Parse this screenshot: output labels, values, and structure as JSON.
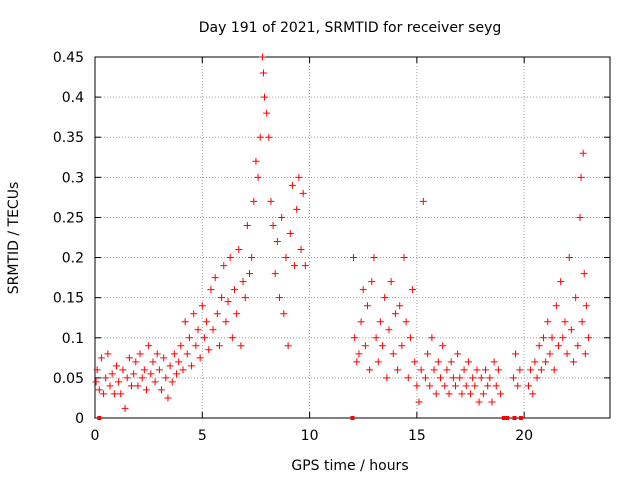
{
  "chart_data": {
    "type": "scatter",
    "title": "Day 191 of 2021, SRMTID for receiver seyg",
    "xlabel": "GPS time / hours",
    "ylabel": "SRMTID / TECUs",
    "xlim": [
      0,
      24
    ],
    "ylim": [
      0,
      0.45
    ],
    "x_ticks": [
      0,
      5,
      10,
      15,
      20
    ],
    "y_ticks": [
      0,
      0.05,
      0.1,
      0.15,
      0.2,
      0.25,
      0.3,
      0.35,
      0.4,
      0.45
    ],
    "x_tick_labels": [
      "0",
      "5",
      "10",
      "15",
      "20"
    ],
    "y_tick_labels": [
      "0",
      "0.05",
      "0.1",
      "0.15",
      "0.2",
      "0.25",
      "0.3",
      "0.35",
      "0.4",
      "0.45"
    ],
    "grid": true,
    "marker": "+",
    "color": "#ff0000",
    "series": [
      {
        "name": "SRMTID",
        "points": [
          [
            0.05,
            0.045
          ],
          [
            0.1,
            0.06
          ],
          [
            0.2,
            0.035
          ],
          [
            0.3,
            0.075
          ],
          [
            0.4,
            0.03
          ],
          [
            0.5,
            0.05
          ],
          [
            0.6,
            0.08
          ],
          [
            0.7,
            0.04
          ],
          [
            0.8,
            0.055
          ],
          [
            0.9,
            0.03
          ],
          [
            1.0,
            0.065
          ],
          [
            1.1,
            0.045
          ],
          [
            1.2,
            0.03
          ],
          [
            1.3,
            0.06
          ],
          [
            1.4,
            0.012
          ],
          [
            1.5,
            0.05
          ],
          [
            1.6,
            0.075
          ],
          [
            1.7,
            0.04
          ],
          [
            1.8,
            0.055
          ],
          [
            1.9,
            0.07
          ],
          [
            2.0,
            0.04
          ],
          [
            2.1,
            0.08
          ],
          [
            2.2,
            0.05
          ],
          [
            2.3,
            0.06
          ],
          [
            2.4,
            0.035
          ],
          [
            2.5,
            0.09
          ],
          [
            2.6,
            0.055
          ],
          [
            2.7,
            0.07
          ],
          [
            2.8,
            0.045
          ],
          [
            2.9,
            0.08
          ],
          [
            3.0,
            0.06
          ],
          [
            3.1,
            0.035
          ],
          [
            3.2,
            0.075
          ],
          [
            3.3,
            0.05
          ],
          [
            3.4,
            0.025
          ],
          [
            3.5,
            0.065
          ],
          [
            3.6,
            0.045
          ],
          [
            3.7,
            0.08
          ],
          [
            3.8,
            0.055
          ],
          [
            3.9,
            0.07
          ],
          [
            4.0,
            0.09
          ],
          [
            4.1,
            0.06
          ],
          [
            4.2,
            0.12
          ],
          [
            4.3,
            0.08
          ],
          [
            4.4,
            0.1
          ],
          [
            4.5,
            0.065
          ],
          [
            4.6,
            0.13
          ],
          [
            4.7,
            0.09
          ],
          [
            4.8,
            0.11
          ],
          [
            4.9,
            0.075
          ],
          [
            5.0,
            0.14
          ],
          [
            5.1,
            0.1
          ],
          [
            5.2,
            0.12
          ],
          [
            5.3,
            0.085
          ],
          [
            5.4,
            0.16
          ],
          [
            5.5,
            0.11
          ],
          [
            5.6,
            0.175
          ],
          [
            5.7,
            0.13
          ],
          [
            5.8,
            0.09
          ],
          [
            5.9,
            0.15
          ],
          [
            6.0,
            0.19
          ],
          [
            6.1,
            0.12
          ],
          [
            6.2,
            0.145
          ],
          [
            6.3,
            0.2
          ],
          [
            6.4,
            0.1
          ],
          [
            6.5,
            0.16
          ],
          [
            6.6,
            0.13
          ],
          [
            6.7,
            0.21
          ],
          [
            6.8,
            0.09
          ],
          [
            6.9,
            0.17
          ],
          [
            7.0,
            0.15
          ],
          [
            7.1,
            0.24
          ],
          [
            7.2,
            0.18
          ],
          [
            7.3,
            0.2
          ],
          [
            7.4,
            0.27
          ],
          [
            7.5,
            0.32
          ],
          [
            7.6,
            0.3
          ],
          [
            7.7,
            0.35
          ],
          [
            7.8,
            0.45
          ],
          [
            7.85,
            0.43
          ],
          [
            7.9,
            0.4
          ],
          [
            8.0,
            0.38
          ],
          [
            8.1,
            0.35
          ],
          [
            8.2,
            0.27
          ],
          [
            8.3,
            0.24
          ],
          [
            8.4,
            0.18
          ],
          [
            8.5,
            0.22
          ],
          [
            8.6,
            0.15
          ],
          [
            8.7,
            0.25
          ],
          [
            8.8,
            0.13
          ],
          [
            8.9,
            0.2
          ],
          [
            9.0,
            0.09
          ],
          [
            9.1,
            0.23
          ],
          [
            9.2,
            0.29
          ],
          [
            9.3,
            0.19
          ],
          [
            9.4,
            0.26
          ],
          [
            9.5,
            0.3
          ],
          [
            9.6,
            0.21
          ],
          [
            9.7,
            0.28
          ],
          [
            9.8,
            0.19
          ],
          [
            12.05,
            0.2
          ],
          [
            12.1,
            0.1
          ],
          [
            12.2,
            0.07
          ],
          [
            12.3,
            0.08
          ],
          [
            12.4,
            0.12
          ],
          [
            12.5,
            0.16
          ],
          [
            12.6,
            0.09
          ],
          [
            12.7,
            0.14
          ],
          [
            12.8,
            0.06
          ],
          [
            12.9,
            0.17
          ],
          [
            13.0,
            0.2
          ],
          [
            13.1,
            0.1
          ],
          [
            13.2,
            0.07
          ],
          [
            13.3,
            0.12
          ],
          [
            13.4,
            0.09
          ],
          [
            13.5,
            0.15
          ],
          [
            13.6,
            0.05
          ],
          [
            13.7,
            0.11
          ],
          [
            13.8,
            0.17
          ],
          [
            13.9,
            0.08
          ],
          [
            14.0,
            0.13
          ],
          [
            14.1,
            0.06
          ],
          [
            14.2,
            0.14
          ],
          [
            14.3,
            0.09
          ],
          [
            14.4,
            0.2
          ],
          [
            14.5,
            0.12
          ],
          [
            14.6,
            0.05
          ],
          [
            14.7,
            0.1
          ],
          [
            14.8,
            0.16
          ],
          [
            14.9,
            0.07
          ],
          [
            15.0,
            0.04
          ],
          [
            15.1,
            0.02
          ],
          [
            15.2,
            0.06
          ],
          [
            15.3,
            0.27
          ],
          [
            15.4,
            0.05
          ],
          [
            15.5,
            0.08
          ],
          [
            15.6,
            0.04
          ],
          [
            15.7,
            0.1
          ],
          [
            15.8,
            0.06
          ],
          [
            15.9,
            0.03
          ],
          [
            16.0,
            0.07
          ],
          [
            16.1,
            0.05
          ],
          [
            16.2,
            0.09
          ],
          [
            16.3,
            0.04
          ],
          [
            16.4,
            0.06
          ],
          [
            16.5,
            0.03
          ],
          [
            16.6,
            0.07
          ],
          [
            16.7,
            0.05
          ],
          [
            16.8,
            0.04
          ],
          [
            16.9,
            0.08
          ],
          [
            17.0,
            0.05
          ],
          [
            17.1,
            0.03
          ],
          [
            17.2,
            0.06
          ],
          [
            17.3,
            0.04
          ],
          [
            17.4,
            0.07
          ],
          [
            17.5,
            0.03
          ],
          [
            17.6,
            0.05
          ],
          [
            17.7,
            0.04
          ],
          [
            17.8,
            0.06
          ],
          [
            17.9,
            0.02
          ],
          [
            18.0,
            0.05
          ],
          [
            18.1,
            0.03
          ],
          [
            18.2,
            0.06
          ],
          [
            18.3,
            0.04
          ],
          [
            18.4,
            0.05
          ],
          [
            18.5,
            0.02
          ],
          [
            18.6,
            0.07
          ],
          [
            18.7,
            0.04
          ],
          [
            18.8,
            0.06
          ],
          [
            18.9,
            0.03
          ],
          [
            19.5,
            0.05
          ],
          [
            19.6,
            0.08
          ],
          [
            19.7,
            0.04
          ],
          [
            19.8,
            0.06
          ],
          [
            20.2,
            0.04
          ],
          [
            20.3,
            0.06
          ],
          [
            20.4,
            0.03
          ],
          [
            20.5,
            0.07
          ],
          [
            20.6,
            0.05
          ],
          [
            20.7,
            0.09
          ],
          [
            20.8,
            0.06
          ],
          [
            20.9,
            0.1
          ],
          [
            21.0,
            0.07
          ],
          [
            21.1,
            0.12
          ],
          [
            21.2,
            0.08
          ],
          [
            21.3,
            0.1
          ],
          [
            21.4,
            0.06
          ],
          [
            21.5,
            0.14
          ],
          [
            21.6,
            0.09
          ],
          [
            21.7,
            0.17
          ],
          [
            21.8,
            0.1
          ],
          [
            21.9,
            0.12
          ],
          [
            22.0,
            0.08
          ],
          [
            22.1,
            0.2
          ],
          [
            22.2,
            0.11
          ],
          [
            22.3,
            0.07
          ],
          [
            22.4,
            0.15
          ],
          [
            22.5,
            0.09
          ],
          [
            22.6,
            0.25
          ],
          [
            22.65,
            0.3
          ],
          [
            22.7,
            0.12
          ],
          [
            22.75,
            0.33
          ],
          [
            22.8,
            0.18
          ],
          [
            22.85,
            0.08
          ],
          [
            22.9,
            0.14
          ],
          [
            23.0,
            0.1
          ]
        ]
      }
    ],
    "zero_markers_x": [
      0.2,
      12.0,
      19.05,
      19.2,
      19.55,
      19.85
    ]
  }
}
